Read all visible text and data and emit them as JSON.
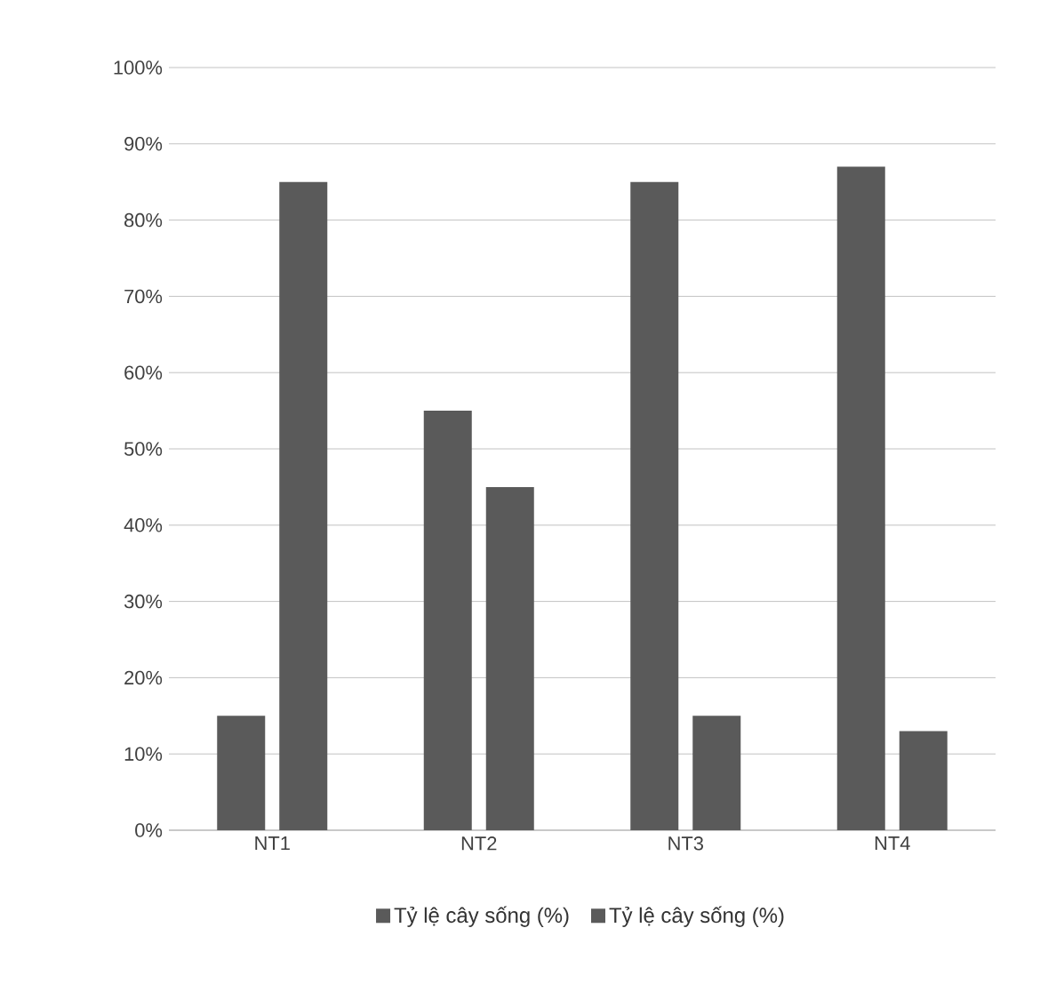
{
  "chart_data": {
    "type": "bar",
    "categories": [
      "NT1",
      "NT2",
      "NT3",
      "NT4"
    ],
    "series": [
      {
        "name": "Tỷ lệ cây sống (%)",
        "color": "#5a5a5a",
        "values": [
          15,
          55,
          85,
          87
        ]
      },
      {
        "name": "Tỷ lệ cây sống (%)",
        "color": "#5a5a5a",
        "values": [
          85,
          45,
          15,
          13
        ]
      }
    ],
    "ylim": [
      0,
      100
    ],
    "yticks": [
      {
        "value": 0,
        "label": "0%"
      },
      {
        "value": 10,
        "label": "10%"
      },
      {
        "value": 20,
        "label": "20%"
      },
      {
        "value": 30,
        "label": "30%"
      },
      {
        "value": 40,
        "label": "40%"
      },
      {
        "value": 50,
        "label": "50%"
      },
      {
        "value": 60,
        "label": "60%"
      },
      {
        "value": 70,
        "label": "70%"
      },
      {
        "value": 80,
        "label": "80%"
      },
      {
        "value": 90,
        "label": "90%"
      },
      {
        "value": 100,
        "label": "100%"
      }
    ],
    "grid": "y",
    "legend": "bottom"
  }
}
